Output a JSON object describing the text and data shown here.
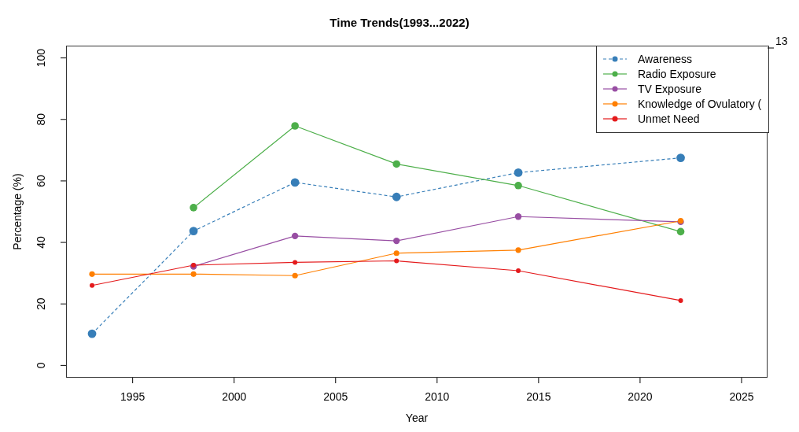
{
  "chart_data": {
    "type": "line",
    "title": "Time Trends(1993...2022)",
    "xlabel": "Year",
    "ylabel": "Percentage (%)",
    "x": [
      1993,
      1998,
      2003,
      2008,
      2014,
      2022
    ],
    "series": [
      {
        "name": "Awareness",
        "color": "#377eb8",
        "line_style": "dashed",
        "values": [
          10.3,
          43.7,
          59.5,
          54.8,
          62.7,
          67.5
        ]
      },
      {
        "name": "Radio Exposure",
        "color": "#4daf4a",
        "values": [
          null,
          51.3,
          77.9,
          65.5,
          58.5,
          43.5
        ]
      },
      {
        "name": "TV Exposure",
        "color": "#984ea3",
        "values": [
          null,
          32.2,
          42.1,
          40.5,
          48.4,
          46.7
        ]
      },
      {
        "name": "Knowledge of Ovulatory (",
        "color": "#ff7f00",
        "values": [
          29.7,
          29.7,
          29.2,
          36.5,
          37.5,
          47.0
        ]
      },
      {
        "name": "Unmet Need",
        "color": "#e41a1c",
        "values": [
          26.0,
          32.6,
          33.5,
          34.0,
          30.8,
          21.1
        ]
      }
    ],
    "xlim": [
      1991.72,
      2026.28
    ],
    "xticks": [
      1995,
      2000,
      2005,
      2010,
      2015,
      2020,
      2025
    ],
    "ylim": [
      -4,
      104
    ],
    "yticks": [
      0,
      20,
      40,
      60,
      80,
      100
    ],
    "annotations": [
      "13"
    ],
    "marker": "circle",
    "line_style": "solid",
    "grid": false,
    "legend": "top right"
  }
}
